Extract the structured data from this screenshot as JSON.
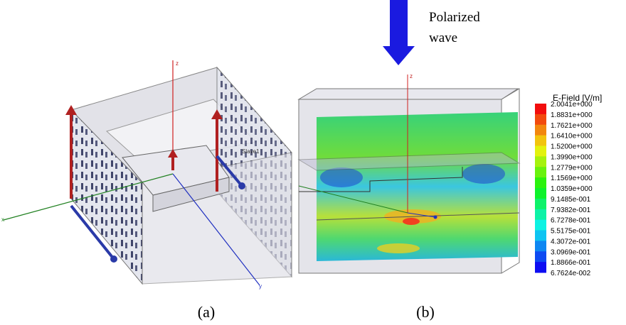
{
  "figure": {
    "arrow_label": [
      "Polarized",
      "wave"
    ],
    "panel_a": {
      "label": "(a)",
      "axis_z": "z",
      "axis_x": "x",
      "axis_y": "y",
      "boundary": "Slave1"
    },
    "panel_b": {
      "label": "(b)",
      "axis_z": "z"
    },
    "legend": {
      "title": "E-Field [V/m]",
      "labels": [
        "2.0041e+000",
        "1.8831e+000",
        "1.7621e+000",
        "1.6410e+000",
        "1.5200e+000",
        "1.3990e+000",
        "1.2779e+000",
        "1.1569e+000",
        "1.0359e+000",
        "9.1485e-001",
        "7.9382e-001",
        "6.7278e-001",
        "5.5175e-001",
        "4.3072e-001",
        "3.0969e-001",
        "1.8866e-001",
        "6.7624e-002"
      ]
    }
  }
}
